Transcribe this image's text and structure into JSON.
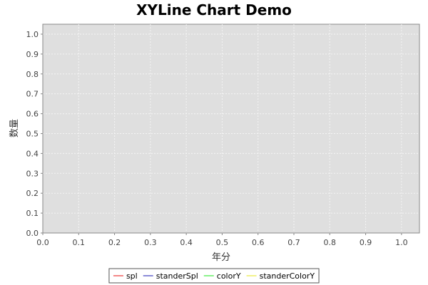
{
  "chart_data": {
    "type": "line",
    "title": "XYLine Chart Demo",
    "xlabel": "年分",
    "ylabel": "数量",
    "xlim": [
      0.0,
      1.05
    ],
    "ylim": [
      0.0,
      1.05
    ],
    "x_ticks": [
      "0.0",
      "0.1",
      "0.2",
      "0.3",
      "0.4",
      "0.5",
      "0.6",
      "0.7",
      "0.8",
      "0.9",
      "1.0"
    ],
    "y_ticks": [
      "0.0",
      "0.1",
      "0.2",
      "0.3",
      "0.4",
      "0.5",
      "0.6",
      "0.7",
      "0.8",
      "0.9",
      "1.0"
    ],
    "grid": true,
    "legend_position": "bottom",
    "plot_background": "#dfdfdf",
    "series": [
      {
        "name": "spl",
        "color": "#f06060",
        "points": []
      },
      {
        "name": "standerSpl",
        "color": "#6666cc",
        "points": []
      },
      {
        "name": "colorY",
        "color": "#66ee66",
        "points": []
      },
      {
        "name": "standerColorY",
        "color": "#eeee66",
        "points": []
      }
    ]
  }
}
